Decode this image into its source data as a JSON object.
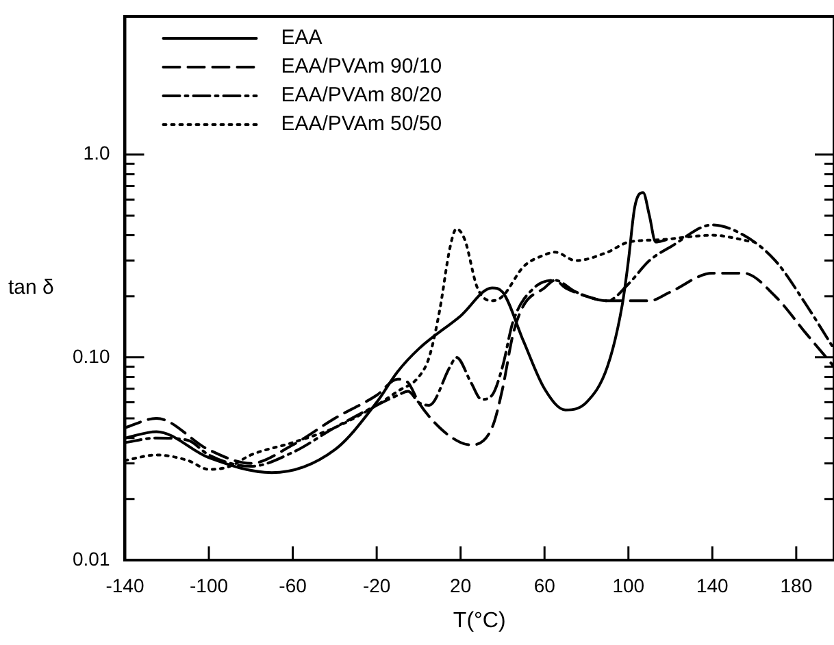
{
  "chart_data": {
    "type": "line",
    "xlabel": "T(°C)",
    "ylabel": "tan δ",
    "xlim": [
      -140,
      198
    ],
    "xticks": [
      -140,
      -100,
      -60,
      -20,
      20,
      60,
      100,
      140,
      180
    ],
    "ylim": [
      0.01,
      4.8
    ],
    "log": "y",
    "yticks": [
      0.01,
      {
        "value": 0.02,
        "label": null
      },
      {
        "value": 0.03,
        "label": null
      },
      {
        "value": 0.04,
        "label": null
      },
      {
        "value": 0.05,
        "label": null
      },
      {
        "value": 0.06,
        "label": null
      },
      {
        "value": 0.07,
        "label": null
      },
      {
        "value": 0.08,
        "label": null
      },
      {
        "value": 0.09,
        "label": null
      },
      {
        "value": 0.1,
        "label": "0.10"
      },
      {
        "value": 0.2,
        "label": null
      },
      {
        "value": 0.3,
        "label": null
      },
      {
        "value": 0.4,
        "label": null
      },
      {
        "value": 0.5,
        "label": null
      },
      {
        "value": 0.6,
        "label": null
      },
      {
        "value": 0.7,
        "label": null
      },
      {
        "value": 0.8,
        "label": null
      },
      {
        "value": 0.9,
        "label": null
      },
      {
        "value": 1,
        "label": "1.0"
      }
    ],
    "grid": false,
    "legend": "top left",
    "marker": "none",
    "series": [
      {
        "name": "EAA",
        "color": "#000000",
        "line_style": "solid",
        "x": [
          -140,
          -125,
          -100,
          -70,
          -40,
          -20,
          -10,
          0,
          20,
          35,
          40,
          50,
          60,
          70,
          80,
          90,
          97,
          100,
          103,
          107,
          110,
          113,
          118
        ],
        "values": [
          0.04,
          0.043,
          0.032,
          0.027,
          0.035,
          0.06,
          0.085,
          0.11,
          0.16,
          0.22,
          0.21,
          0.12,
          0.07,
          0.055,
          0.06,
          0.09,
          0.18,
          0.3,
          0.55,
          0.65,
          0.5,
          0.37,
          0.38
        ]
      },
      {
        "name": "EAA/PVAm 90/10",
        "color": "#000000",
        "line_style": "dashed",
        "x": [
          -140,
          -125,
          -100,
          -80,
          -60,
          -40,
          -20,
          -10,
          -5,
          0,
          10,
          20,
          25,
          35,
          40,
          45,
          50,
          60,
          65,
          70,
          80,
          90,
          100,
          110,
          120,
          140,
          155,
          170,
          185,
          198
        ],
        "values": [
          0.045,
          0.05,
          0.035,
          0.03,
          0.037,
          0.05,
          0.065,
          0.078,
          0.075,
          0.06,
          0.045,
          0.038,
          0.037,
          0.045,
          0.07,
          0.13,
          0.18,
          0.22,
          0.24,
          0.22,
          0.2,
          0.19,
          0.19,
          0.19,
          0.21,
          0.26,
          0.26,
          0.2,
          0.13,
          0.09
        ]
      },
      {
        "name": "EAA/PVAm 80/20",
        "color": "#000000",
        "line_style": "dashdot",
        "x": [
          -140,
          -125,
          -110,
          -100,
          -80,
          -60,
          -40,
          -20,
          -10,
          -5,
          0,
          5,
          15,
          18,
          25,
          30,
          35,
          40,
          45,
          55,
          65,
          75,
          90,
          100,
          110,
          120,
          140,
          155,
          170,
          185,
          198
        ],
        "values": [
          0.038,
          0.04,
          0.039,
          0.033,
          0.029,
          0.034,
          0.045,
          0.058,
          0.065,
          0.068,
          0.06,
          0.058,
          0.09,
          0.1,
          0.075,
          0.062,
          0.065,
          0.09,
          0.15,
          0.22,
          0.24,
          0.21,
          0.19,
          0.23,
          0.3,
          0.35,
          0.45,
          0.4,
          0.3,
          0.18,
          0.11
        ]
      },
      {
        "name": "EAA/PVAm 50/50",
        "color": "#000000",
        "line_style": "dotted",
        "x": [
          -140,
          -125,
          -110,
          -100,
          -90,
          -80,
          -60,
          -40,
          -20,
          -10,
          0,
          5,
          10,
          15,
          18,
          22,
          28,
          35,
          40,
          50,
          60,
          65,
          75,
          90,
          100,
          115,
          140,
          160
        ],
        "values": [
          0.031,
          0.033,
          0.031,
          0.028,
          0.029,
          0.033,
          0.038,
          0.045,
          0.058,
          0.068,
          0.08,
          0.1,
          0.17,
          0.35,
          0.43,
          0.38,
          0.22,
          0.19,
          0.2,
          0.28,
          0.32,
          0.33,
          0.3,
          0.33,
          0.37,
          0.38,
          0.4,
          0.37
        ]
      }
    ]
  }
}
